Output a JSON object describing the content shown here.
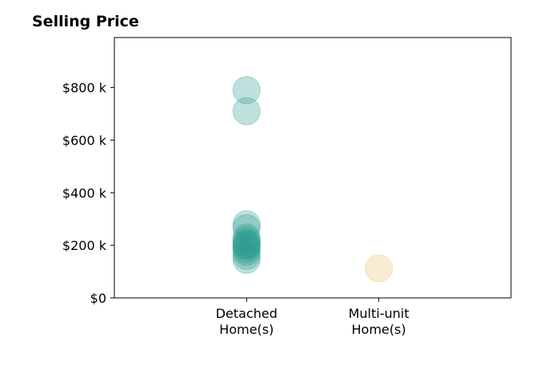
{
  "chart_data": {
    "type": "scatter",
    "title": "Selling Price",
    "xlabel": "",
    "ylabel": "",
    "categories": [
      "Detached\nHome(s)",
      "Multi-unit\nHome(s)"
    ],
    "yticks": [
      "$0",
      "$200 k",
      "$400 k",
      "$600 k",
      "$800 k"
    ],
    "ytick_values": [
      0,
      200,
      400,
      600,
      800
    ],
    "ylim": [
      0,
      990
    ],
    "xlim": [
      -1,
      2
    ],
    "grid": false,
    "series": [
      {
        "category": "Detached\nHome(s)",
        "color": "#2a9d8f",
        "values": [
          790,
          710,
          280,
          265,
          230,
          220,
          210,
          205,
          200,
          195,
          185,
          175,
          160,
          145
        ]
      },
      {
        "category": "Multi-unit\nHome(s)",
        "color": "#e9c46a",
        "values": [
          112
        ]
      }
    ]
  }
}
